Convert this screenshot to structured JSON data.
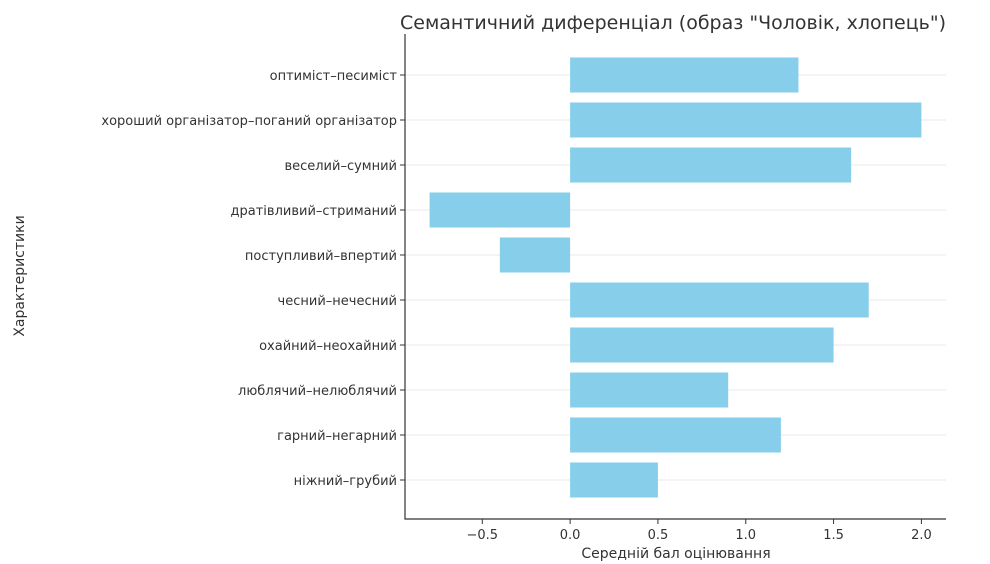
{
  "chart_data": {
    "type": "bar",
    "orientation": "horizontal",
    "title": "Семантичний диференціал (образ \"Чоловік, хлопець\")",
    "xlabel": "Середній бал оцінювання",
    "ylabel": "Характеристики",
    "categories": [
      "оптиміст–песиміст",
      "хороший організатор–поганий організатор",
      "веселий–сумний",
      "дратівливий–стриманий",
      "поступливий–впертий",
      "чесний–нечесний",
      "охайний–неохайний",
      "люблячий–нелюблячий",
      "гарний–негарний",
      "ніжний–грубий"
    ],
    "values": [
      1.3,
      2.0,
      1.6,
      -0.8,
      -0.4,
      1.7,
      1.5,
      0.9,
      1.2,
      0.5
    ],
    "xticks": [
      -0.5,
      0.0,
      0.5,
      1.0,
      1.5,
      2.0
    ],
    "xtick_labels": [
      "−0.5",
      "0.0",
      "0.5",
      "1.0",
      "1.5",
      "2.0"
    ],
    "xlim": [
      -0.94,
      2.14
    ],
    "grid": "horizontal",
    "bar_color": "#87ceeb"
  }
}
